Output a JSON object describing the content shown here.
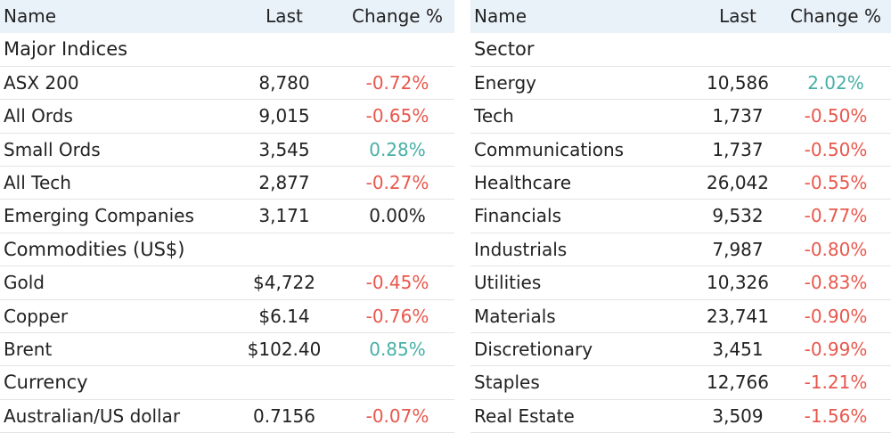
{
  "tables": [
    {
      "columns": [
        "Name",
        "Last",
        "Change %"
      ],
      "rows": [
        [
          "Major Indices"
        ],
        [
          "ASX 200",
          "8,780",
          "-0.72%"
        ],
        [
          "All Ords",
          "9,015",
          "-0.65%"
        ],
        [
          "Small Ords",
          "3,545",
          "0.28%"
        ],
        [
          "All Tech",
          "2,877",
          "-0.27%"
        ],
        [
          "Emerging Companies",
          "3,171",
          "0.00%"
        ],
        [
          "Commodities (US$)"
        ],
        [
          "Gold",
          "$4,722",
          "-0.45%"
        ],
        [
          "Copper",
          "$6.14",
          "-0.76%"
        ],
        [
          "Brent",
          "$102.40",
          "0.85%"
        ],
        [
          "Currency"
        ],
        [
          "Australian/US dollar",
          "0.7156",
          "-0.07%"
        ]
      ]
    },
    {
      "columns": [
        "Name",
        "Last",
        "Change %"
      ],
      "rows": [
        [
          "Sector"
        ],
        [
          "Energy",
          "10,586",
          "2.02%"
        ],
        [
          "Tech",
          "1,737",
          "-0.50%"
        ],
        [
          "Communications",
          "1,737",
          "-0.50%"
        ],
        [
          "Healthcare",
          "26,042",
          "-0.55%"
        ],
        [
          "Financials",
          "9,532",
          "-0.77%"
        ],
        [
          "Industrials",
          "7,987",
          "-0.80%"
        ],
        [
          "Utilities",
          "10,326",
          "-0.83%"
        ],
        [
          "Materials",
          "23,741",
          "-0.90%"
        ],
        [
          "Discretionary",
          "3,451",
          "-0.99%"
        ],
        [
          "Staples",
          "12,766",
          "-1.21%"
        ],
        [
          "Real Estate",
          "3,509",
          "-1.56%"
        ]
      ]
    }
  ]
}
